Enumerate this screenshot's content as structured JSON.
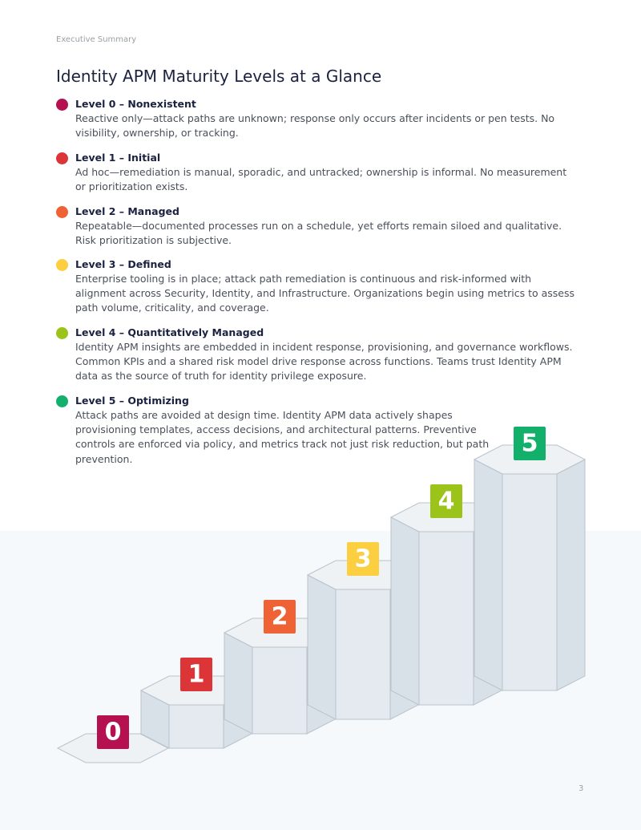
{
  "header": {
    "section": "Executive Summary",
    "title": "Identity APM Maturity Levels at a Glance"
  },
  "levels": [
    {
      "badge": "0",
      "heading": "Level 0 – Nonexistent",
      "color": "#b5104f",
      "description": "Reactive only—attack paths are unknown; response only occurs after incidents or pen tests. No visibility, ownership, or tracking."
    },
    {
      "badge": "1",
      "heading": "Level 1 – Initial",
      "color": "#dc3538",
      "description": "Ad hoc—remediation is manual, sporadic, and untracked; ownership is informal. No measurement or prioritization exists."
    },
    {
      "badge": "2",
      "heading": "Level 2 – Managed",
      "color": "#ef6236",
      "description": "Repeatable—documented processes run on a schedule, yet efforts remain siloed and qualitative. Risk prioritization is subjective."
    },
    {
      "badge": "3",
      "heading": "Level 3 – Defined",
      "color": "#fbcf3f",
      "description": "Enterprise tooling is in place; attack path remediation is continuous and risk-informed with alignment across Security, Identity, and Infrastructure. Organizations begin using metrics to assess path volume, criticality, and coverage."
    },
    {
      "badge": "4",
      "heading": "Level 4 – Quantitatively Managed",
      "color": "#9cc31a",
      "description": "Identity APM insights are embedded in incident response, provisioning, and governance workflows. Common KPIs and a shared risk model drive response across functions. Teams trust Identity APM data as the source of truth for identity privilege exposure."
    },
    {
      "badge": "5",
      "heading": "Level 5 – Optimizing",
      "color": "#12b06b",
      "description": "Attack paths are avoided at design time. Identity APM data actively shapes provisioning templates, access decisions, and architectural patterns. Preventive controls are enforced via policy, and metrics track not just risk reduction, but path prevention."
    }
  ],
  "footer": {
    "page": "3"
  }
}
